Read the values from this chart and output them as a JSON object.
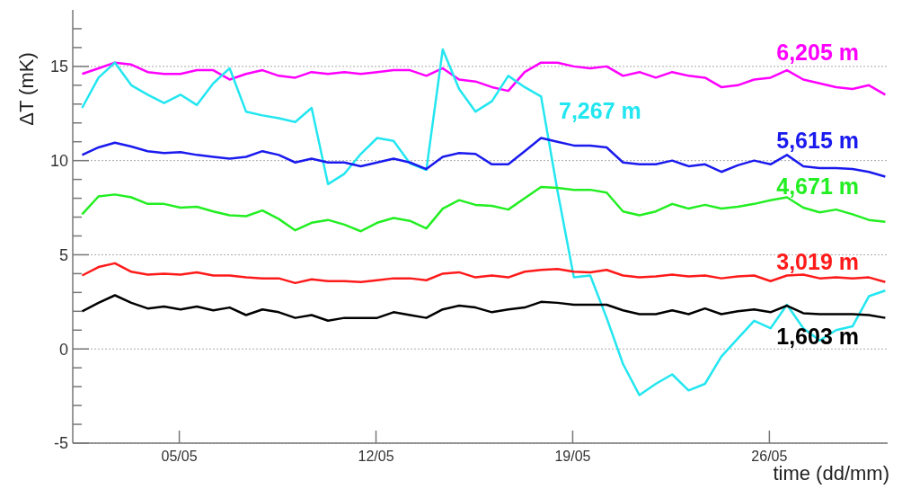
{
  "chart_data": {
    "type": "line",
    "ylabel": "ΔT (mK)",
    "xlabel": "time (dd/mm)",
    "x": [
      "--05-01T13:00",
      "--05-02T03:00",
      "--05-02T17:00",
      "--05-03T07:00",
      "--05-03T21:00",
      "--05-04T11:00",
      "--05-05T01:00",
      "--05-05T15:00",
      "--05-06T05:00",
      "--05-06T19:00",
      "--05-07T09:00",
      "--05-07T23:00",
      "--05-08T13:00",
      "--05-09T03:00",
      "--05-09T17:00",
      "--05-10T07:00",
      "--05-10T21:00",
      "--05-11T11:00",
      "--05-12T01:00",
      "--05-12T15:00",
      "--05-13T05:00",
      "--05-13T19:00",
      "--05-14T09:00",
      "--05-14T23:00",
      "--05-15T13:00",
      "--05-16T03:00",
      "--05-16T17:00",
      "--05-17T07:00",
      "--05-17T21:00",
      "--05-18T11:00",
      "--05-19T01:00",
      "--05-19T15:00",
      "--05-20T05:00",
      "--05-20T19:00",
      "--05-21T09:00",
      "--05-21T23:00",
      "--05-22T13:00",
      "--05-23T03:00",
      "--05-23T17:00",
      "--05-24T07:00",
      "--05-24T21:00",
      "--05-25T11:00",
      "--05-26T01:00",
      "--05-26T15:00",
      "--05-27T05:00",
      "--05-27T19:00",
      "--05-28T09:00",
      "--05-28T23:00",
      "--05-29T13:00",
      "--05-30T03:00"
    ],
    "xlim": [
      "--05-01T05:00",
      "--05-30T05:00"
    ],
    "xticks": [
      {
        "value": "--05-05",
        "label": "05/05"
      },
      {
        "value": "--05-12",
        "label": "12/05"
      },
      {
        "value": "--05-19",
        "label": "19/05"
      },
      {
        "value": "--05-26",
        "label": "26/05"
      }
    ],
    "ylim": [
      -5,
      18
    ],
    "yticks": [
      -5,
      {
        "value": -4,
        "label": null
      },
      {
        "value": -3,
        "label": null
      },
      {
        "value": -2,
        "label": null
      },
      {
        "value": -1,
        "label": null
      },
      0,
      {
        "value": 1,
        "label": null
      },
      {
        "value": 2,
        "label": null
      },
      {
        "value": 3,
        "label": null
      },
      {
        "value": 4,
        "label": null
      },
      5,
      {
        "value": 6,
        "label": null
      },
      {
        "value": 7,
        "label": null
      },
      {
        "value": 8,
        "label": null
      },
      {
        "value": 9,
        "label": null
      },
      10,
      {
        "value": 11,
        "label": null
      },
      {
        "value": 12,
        "label": null
      },
      {
        "value": 13,
        "label": null
      },
      {
        "value": 14,
        "label": null
      },
      15,
      {
        "value": 16,
        "label": null
      },
      {
        "value": 17,
        "label": null
      }
    ],
    "grid": "y",
    "series": [
      {
        "name": "6,205 m",
        "color": "#ff00ff",
        "values": [
          14.6,
          14.9,
          15.2,
          15.1,
          14.7,
          14.6,
          14.6,
          14.8,
          14.8,
          14.3,
          14.6,
          14.8,
          14.5,
          14.4,
          14.7,
          14.6,
          14.7,
          14.6,
          14.7,
          14.8,
          14.8,
          14.5,
          14.9,
          14.3,
          14.2,
          13.9,
          13.7,
          14.7,
          15.2,
          15.2,
          15.0,
          14.9,
          15.0,
          14.5,
          14.7,
          14.4,
          14.7,
          14.5,
          14.4,
          13.9,
          14.0,
          14.3,
          14.4,
          14.8,
          14.3,
          14.1,
          13.9,
          13.8,
          14.0,
          13.5
        ]
      },
      {
        "name": "7,267 m",
        "color": "#22e6f0",
        "values": [
          12.8,
          14.4,
          15.2,
          14.0,
          13.5,
          13.05,
          13.5,
          12.95,
          14.1,
          14.9,
          12.6,
          12.4,
          12.25,
          12.05,
          12.8,
          8.75,
          9.3,
          10.35,
          11.2,
          11.05,
          9.85,
          9.5,
          15.9,
          13.8,
          12.6,
          13.15,
          14.5,
          13.9,
          13.4,
          8.4,
          3.8,
          3.9,
          1.65,
          -0.8,
          -2.45,
          -1.85,
          -1.35,
          -2.2,
          -1.85,
          -0.4,
          0.55,
          1.5,
          1.1,
          2.35,
          1.1,
          0.45,
          1.0,
          1.2,
          2.8,
          3.1
        ]
      },
      {
        "name": "5,615 m",
        "color": "#1a1aee",
        "values": [
          10.3,
          10.7,
          10.95,
          10.75,
          10.5,
          10.4,
          10.45,
          10.3,
          10.2,
          10.1,
          10.2,
          10.5,
          10.3,
          9.9,
          10.1,
          9.9,
          9.9,
          9.7,
          9.9,
          10.1,
          9.9,
          9.55,
          10.2,
          10.4,
          10.35,
          9.8,
          9.8,
          10.5,
          11.2,
          11.0,
          10.8,
          10.8,
          10.7,
          9.9,
          9.8,
          9.8,
          10.0,
          9.7,
          9.8,
          9.4,
          9.75,
          10.0,
          9.8,
          10.3,
          9.7,
          9.6,
          9.6,
          9.55,
          9.4,
          9.15
        ]
      },
      {
        "name": "4,671 m",
        "color": "#22ee22",
        "values": [
          7.15,
          8.1,
          8.2,
          8.05,
          7.7,
          7.7,
          7.5,
          7.55,
          7.3,
          7.1,
          7.05,
          7.35,
          6.9,
          6.3,
          6.7,
          6.85,
          6.6,
          6.25,
          6.7,
          6.95,
          6.8,
          6.4,
          7.45,
          7.9,
          7.65,
          7.6,
          7.4,
          8.0,
          8.6,
          8.55,
          8.45,
          8.45,
          8.3,
          7.3,
          7.1,
          7.3,
          7.7,
          7.45,
          7.65,
          7.45,
          7.55,
          7.7,
          7.9,
          8.05,
          7.5,
          7.25,
          7.4,
          7.15,
          6.85,
          6.75
        ]
      },
      {
        "name": "3,019 m",
        "color": "#ff1a1a",
        "values": [
          3.9,
          4.35,
          4.55,
          4.1,
          3.95,
          4.0,
          3.95,
          4.07,
          3.9,
          3.9,
          3.8,
          3.75,
          3.75,
          3.5,
          3.7,
          3.6,
          3.6,
          3.55,
          3.65,
          3.75,
          3.75,
          3.65,
          4.0,
          4.07,
          3.8,
          3.9,
          3.8,
          4.1,
          4.2,
          4.25,
          4.1,
          4.07,
          4.2,
          3.9,
          3.8,
          3.85,
          3.95,
          3.85,
          3.9,
          3.75,
          3.85,
          3.9,
          3.6,
          3.9,
          3.95,
          3.75,
          3.8,
          3.75,
          3.8,
          3.55
        ]
      },
      {
        "name": "1,603 m",
        "color": "#000000",
        "values": [
          2.0,
          2.45,
          2.85,
          2.45,
          2.15,
          2.25,
          2.1,
          2.25,
          2.05,
          2.2,
          1.8,
          2.1,
          1.95,
          1.65,
          1.8,
          1.5,
          1.65,
          1.65,
          1.65,
          1.95,
          1.8,
          1.65,
          2.1,
          2.3,
          2.2,
          1.95,
          2.1,
          2.2,
          2.5,
          2.45,
          2.35,
          2.35,
          2.35,
          2.05,
          1.85,
          1.85,
          2.05,
          1.85,
          2.15,
          1.85,
          2.0,
          2.1,
          1.95,
          2.3,
          1.9,
          1.85,
          1.85,
          1.85,
          1.8,
          1.65
        ]
      }
    ]
  }
}
